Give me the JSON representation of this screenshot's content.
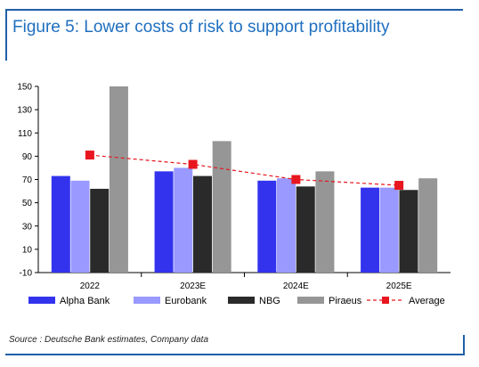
{
  "header": {
    "title": "Figure 5: Lower costs of risk to support profitability"
  },
  "footer": {
    "source": "Source : Deutsche Bank estimates, Company data"
  },
  "colors": {
    "frame": "#1f5fa8",
    "title": "#1f6fbf",
    "alpha_bank": "#3333ee",
    "eurobank": "#9999ff",
    "nbg": "#2a2a2a",
    "piraeus": "#969696",
    "average": "#e8161e"
  },
  "chart_data": {
    "type": "bar",
    "categories": [
      "2022",
      "2023E",
      "2024E",
      "2025E"
    ],
    "yticks": [
      "-10",
      "10",
      "30",
      "50",
      "70",
      "90",
      "110",
      "130",
      "150"
    ],
    "ylim": [
      -10,
      150
    ],
    "grid": false,
    "legend_position": "bottom",
    "xlabel": "",
    "ylabel": "",
    "series": [
      {
        "name": "Alpha Bank",
        "type": "bar",
        "color": "#3333ee",
        "values": [
          73,
          77,
          69,
          63
        ]
      },
      {
        "name": "Eurobank",
        "type": "bar",
        "color": "#9999ff",
        "values": [
          69,
          80,
          71,
          63
        ]
      },
      {
        "name": "NBG",
        "type": "bar",
        "color": "#2a2a2a",
        "values": [
          62,
          73,
          64,
          61
        ]
      },
      {
        "name": "Piraeus",
        "type": "bar",
        "color": "#969696",
        "values": [
          150,
          103,
          77,
          71
        ]
      },
      {
        "name": "Average",
        "type": "line",
        "color": "#e8161e",
        "values": [
          91,
          83,
          70,
          65
        ]
      }
    ]
  }
}
